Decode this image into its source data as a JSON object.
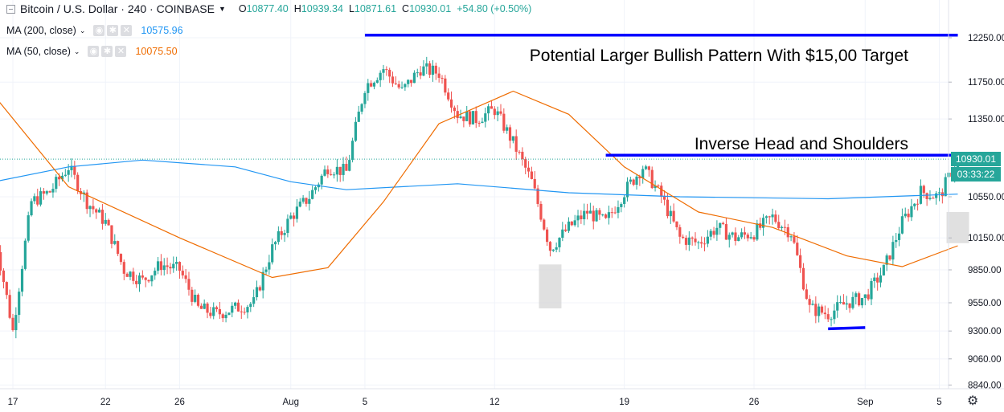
{
  "header": {
    "symbol": "Bitcoin / U.S. Dollar · 240 · COINBASE",
    "ohlc": [
      {
        "label": "O",
        "value": "10877.40"
      },
      {
        "label": "H",
        "value": "10939.34"
      },
      {
        "label": "L",
        "value": "10871.61"
      },
      {
        "label": "C",
        "value": "10930.01"
      }
    ],
    "change": "+54.80 (+0.50%)"
  },
  "indicators": [
    {
      "name": "MA (200, close)",
      "value": "10575.96",
      "color": "#2196f3"
    },
    {
      "name": "MA (50, close)",
      "value": "10075.50",
      "color": "#ef6c00"
    }
  ],
  "price_label": {
    "value": "10930.01",
    "countdown": "03:33:22"
  },
  "icons": {
    "settings": "gear-icon",
    "collapse": "minus-square-icon",
    "toggle": "eye-icon",
    "ma_settings": "gear-icon",
    "remove": "close-icon"
  },
  "colors": {
    "up": "#26a69a",
    "down": "#ef5350",
    "ma200": "#2196f3",
    "ma50": "#ef6c00",
    "annotation": "#0000ff",
    "highlight": "#d6d6d6"
  },
  "chart_data": {
    "type": "candlestick",
    "title": "Bitcoin / U.S. Dollar · 240 · COINBASE",
    "xlabel": "",
    "ylabel": "",
    "ylim": [
      8760,
      12480
    ],
    "y_scale": "log",
    "y_ticks": [
      8840,
      9060,
      9300,
      9550,
      9850,
      10150,
      10550,
      10930.01,
      11350,
      11750,
      12250
    ],
    "x_ticks": [
      {
        "label": "17",
        "x": "2019-07-17"
      },
      {
        "label": "22",
        "x": "2019-07-22"
      },
      {
        "label": "26",
        "x": "2019-07-26"
      },
      {
        "label": "Aug",
        "x": "2019-08-01"
      },
      {
        "label": "5",
        "x": "2019-08-05"
      },
      {
        "label": "12",
        "x": "2019-08-12"
      },
      {
        "label": "19",
        "x": "2019-08-19"
      },
      {
        "label": "26",
        "x": "2019-08-26"
      },
      {
        "label": "Sep",
        "x": "2019-09-01"
      },
      {
        "label": "5",
        "x": "2019-09-05"
      }
    ],
    "grid": true,
    "price_path": [
      [
        "2019-07-16",
        10200
      ],
      [
        "2019-07-17",
        9300
      ],
      [
        "2019-07-18",
        10500
      ],
      [
        "2019-07-19",
        10600
      ],
      [
        "2019-07-20",
        10850
      ],
      [
        "2019-07-21",
        10500
      ],
      [
        "2019-07-22",
        10300
      ],
      [
        "2019-07-23",
        9850
      ],
      [
        "2019-07-24",
        9750
      ],
      [
        "2019-07-25",
        9900
      ],
      [
        "2019-07-26",
        9850
      ],
      [
        "2019-07-27",
        9500
      ],
      [
        "2019-07-28",
        9450
      ],
      [
        "2019-07-29",
        9500
      ],
      [
        "2019-07-30",
        9550
      ],
      [
        "2019-07-31",
        10050
      ],
      [
        "2019-08-01",
        10350
      ],
      [
        "2019-08-02",
        10550
      ],
      [
        "2019-08-03",
        10850
      ],
      [
        "2019-08-04",
        10800
      ],
      [
        "2019-08-05",
        11700
      ],
      [
        "2019-08-06",
        11900
      ],
      [
        "2019-08-07",
        11650
      ],
      [
        "2019-08-08",
        11900
      ],
      [
        "2019-08-09",
        11850
      ],
      [
        "2019-08-10",
        11400
      ],
      [
        "2019-08-11",
        11350
      ],
      [
        "2019-08-12",
        11450
      ],
      [
        "2019-08-13",
        11100
      ],
      [
        "2019-08-14",
        10700
      ],
      [
        "2019-08-15",
        10050
      ],
      [
        "2019-08-16",
        10250
      ],
      [
        "2019-08-17",
        10400
      ],
      [
        "2019-08-18",
        10300
      ],
      [
        "2019-08-19",
        10600
      ],
      [
        "2019-08-20",
        10850
      ],
      [
        "2019-08-21",
        10550
      ],
      [
        "2019-08-22",
        10150
      ],
      [
        "2019-08-23",
        10100
      ],
      [
        "2019-08-24",
        10250
      ],
      [
        "2019-08-25",
        10150
      ],
      [
        "2019-08-26",
        10200
      ],
      [
        "2019-08-27",
        10350
      ],
      [
        "2019-08-28",
        10200
      ],
      [
        "2019-08-29",
        9500
      ],
      [
        "2019-08-30",
        9450
      ],
      [
        "2019-08-31",
        9550
      ],
      [
        "2019-09-01",
        9600
      ],
      [
        "2019-09-02",
        9850
      ],
      [
        "2019-09-03",
        10300
      ],
      [
        "2019-09-04",
        10600
      ],
      [
        "2019-09-05",
        10550
      ],
      [
        "2019-09-06",
        10930
      ]
    ],
    "series": [
      {
        "name": "MA (200, close)",
        "values": [
          [
            "2019-07-16",
            10700
          ],
          [
            "2019-07-20",
            10850
          ],
          [
            "2019-07-24",
            10920
          ],
          [
            "2019-07-29",
            10850
          ],
          [
            "2019-08-01",
            10700
          ],
          [
            "2019-08-04",
            10620
          ],
          [
            "2019-08-10",
            10680
          ],
          [
            "2019-08-16",
            10590
          ],
          [
            "2019-08-22",
            10550
          ],
          [
            "2019-08-30",
            10530
          ],
          [
            "2019-09-06",
            10575.96
          ]
        ]
      },
      {
        "name": "MA (50, close)",
        "values": [
          [
            "2019-07-16",
            11600
          ],
          [
            "2019-07-20",
            10650
          ],
          [
            "2019-07-26",
            10150
          ],
          [
            "2019-07-31",
            9780
          ],
          [
            "2019-08-03",
            9870
          ],
          [
            "2019-08-06",
            10500
          ],
          [
            "2019-08-09",
            11300
          ],
          [
            "2019-08-13",
            11650
          ],
          [
            "2019-08-16",
            11400
          ],
          [
            "2019-08-19",
            10850
          ],
          [
            "2019-08-23",
            10400
          ],
          [
            "2019-08-27",
            10250
          ],
          [
            "2019-08-31",
            9980
          ],
          [
            "2019-09-03",
            9880
          ],
          [
            "2019-09-06",
            10075.5
          ]
        ]
      }
    ],
    "annotations": [
      {
        "type": "line",
        "from": [
          "2019-08-05",
          12280
        ],
        "to": [
          "2019-09-06",
          12280
        ]
      },
      {
        "type": "text",
        "text": "Potential Larger Bullish Pattern With $15,00 Target"
      },
      {
        "type": "line",
        "from": [
          "2019-08-18",
          10970
        ],
        "to": [
          "2019-09-06",
          10970
        ]
      },
      {
        "type": "text",
        "text": "Inverse Head and Shoulders"
      },
      {
        "type": "line",
        "from": [
          "2019-08-30",
          9320
        ],
        "to": [
          "2019-09-01",
          9330
        ]
      },
      {
        "type": "range",
        "x": "2019-08-15",
        "from": 9500,
        "to": 9900
      },
      {
        "type": "range",
        "x": "2019-09-06",
        "from": 10100,
        "to": 10400
      }
    ]
  }
}
